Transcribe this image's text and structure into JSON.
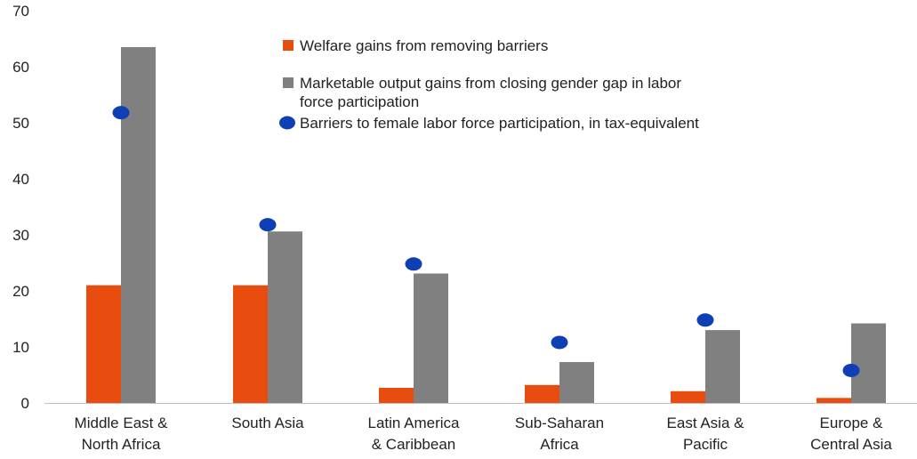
{
  "chart_data": {
    "type": "bar",
    "title": "",
    "xlabel": "",
    "ylabel": "",
    "ylim": [
      0,
      70
    ],
    "yticks": [
      "0",
      "10",
      "20",
      "30",
      "40",
      "50",
      "60",
      "70"
    ],
    "grid": false,
    "legend_position": "top-right",
    "categories": [
      [
        "Middle East &",
        "North Africa"
      ],
      [
        "South Asia"
      ],
      [
        "Latin America",
        "& Caribbean"
      ],
      [
        "Sub-Saharan",
        "Africa"
      ],
      [
        "East Asia &",
        "Pacific"
      ],
      [
        "Europe &",
        "Central Asia"
      ]
    ],
    "series": [
      {
        "name": "Welfare gains from removing barriers",
        "kind": "bar",
        "color": "#e84c0e",
        "values": [
          21,
          21,
          2.7,
          3.2,
          2.1,
          0.9
        ]
      },
      {
        "name": [
          "Marketable output gains from closing gender gap in labor",
          "force participation"
        ],
        "kind": "bar",
        "color": "#808080",
        "values": [
          63.5,
          30.6,
          23.1,
          7.3,
          13.0,
          14.2
        ]
      },
      {
        "name": "Barriers to female labor force participation, in tax-equivalent",
        "kind": "dot",
        "color": "#0f3fb4",
        "values": [
          51.8,
          31.8,
          24.8,
          10.8,
          14.8,
          5.8
        ]
      }
    ]
  }
}
